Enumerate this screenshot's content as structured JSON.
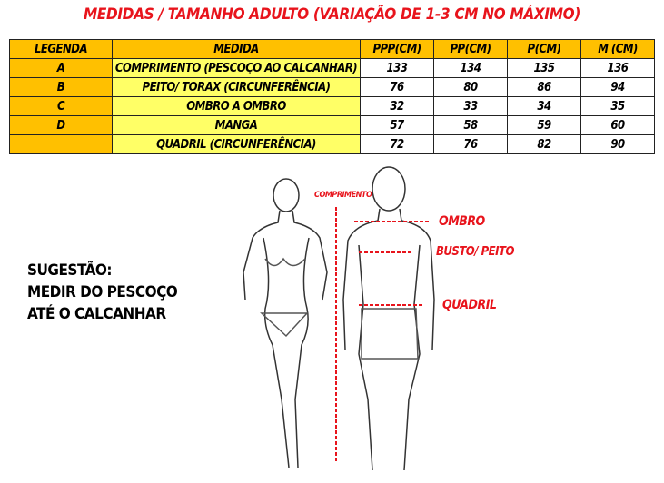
{
  "title": "MEDIDAS / TAMANHO ADULTO (VARIAÇÃO DE 1-3 CM NO MÁXIMO)",
  "table": {
    "headers": [
      "LEGENDA",
      "MEDIDA",
      "PPP(CM)",
      "PP(CM)",
      "P(CM)",
      "M (CM)"
    ],
    "rows": [
      [
        "A",
        "COMPRIMENTO (PESCOÇO AO CALCANHAR)",
        "133",
        "134",
        "135",
        "136"
      ],
      [
        "B",
        "PEITO/ TORAX  (CIRCUNFERÊNCIA)",
        "76",
        "80",
        "86",
        "94"
      ],
      [
        "C",
        "OMBRO A OMBRO",
        "32",
        "33",
        "34",
        "35"
      ],
      [
        "D",
        "MANGA",
        "57",
        "58",
        "59",
        "60"
      ],
      [
        "",
        "QUADRIL (CIRCUNFERÊNCIA)",
        "72",
        "76",
        "82",
        "90"
      ]
    ]
  },
  "labels": {
    "comprimento": "COMPRIMENTO",
    "ombro": "OMBRO",
    "busto": "BUSTO/ PEITO",
    "quadril": "QUADRIL"
  },
  "suggestion": [
    "SUGESTÃO:",
    "MEDIR DO PESCOÇO",
    "ATÉ O CALCANHAR"
  ],
  "colors": {
    "header": "#ffc000",
    "medida": "#ffff66",
    "accent": "#e8141c"
  }
}
